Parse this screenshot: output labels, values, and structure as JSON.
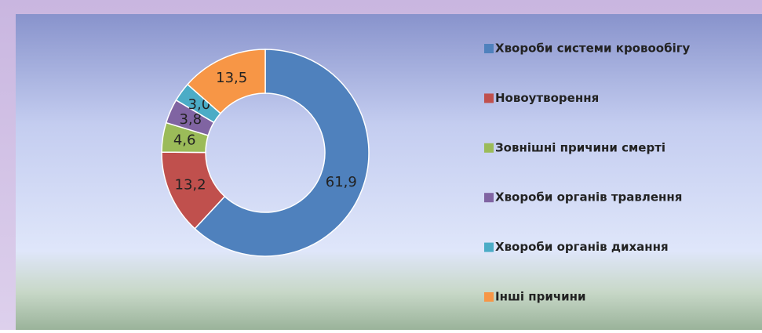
{
  "chart_data": {
    "type": "donut",
    "categories": [
      "Хвороби системи кровообігу",
      "Новоутворення",
      "Зовнішні причини смерті",
      "Хвороби органів травлення",
      "Хвороби органів дихання",
      "Інші причини"
    ],
    "values": [
      61.9,
      13.2,
      4.6,
      3.8,
      3.0,
      13.5
    ],
    "value_labels": [
      "61,9",
      "13,2",
      "4,6",
      "3,8",
      "3,0",
      "13,5"
    ],
    "colors": [
      "#4f81bd",
      "#c0504d",
      "#9bbb59",
      "#8064a2",
      "#4bacc6",
      "#f79646"
    ],
    "legend": "right"
  }
}
